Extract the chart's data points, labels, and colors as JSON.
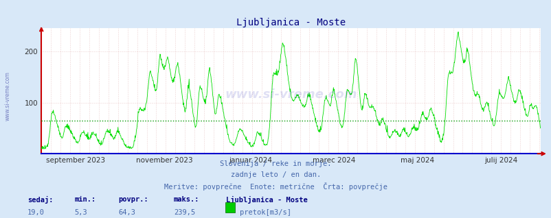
{
  "title": "Ljubljanica - Moste",
  "title_color": "#000080",
  "bg_color": "#d8e8f8",
  "plot_bg_color": "#ffffff",
  "line_color": "#00dd00",
  "avg_line_color": "#009900",
  "avg_value": 64.3,
  "min_value": 5.3,
  "max_value": 239.5,
  "current_value": 19.0,
  "ylim_min": 0,
  "ylim_max": 240,
  "yticks": [
    100,
    200
  ],
  "xlabel_labels": [
    "september 2023",
    "november 2023",
    "januar 2024",
    "marec 2024",
    "maj 2024",
    "julij 2024"
  ],
  "grid_color": "#ddaaaa",
  "watermark": "www.si-vreme.com",
  "footer_line1": "Slovenija / reke in morje.",
  "footer_line2": "zadnje leto / en dan.",
  "footer_line3": "Meritve: povprečne  Enote: metrične  Črta: povprečje",
  "footer_color": "#4466aa",
  "label_sedaj": "sedaj:",
  "label_min": "min.:",
  "label_povpr": "povpr.:",
  "label_maks": "maks.:",
  "label_station": "Ljubljanica - Moste",
  "label_pretok": "pretok[m3/s]",
  "label_color": "#000080",
  "value_color": "#4466aa",
  "left_axis_color": "#cc0000",
  "bottom_axis_color": "#0000cc"
}
